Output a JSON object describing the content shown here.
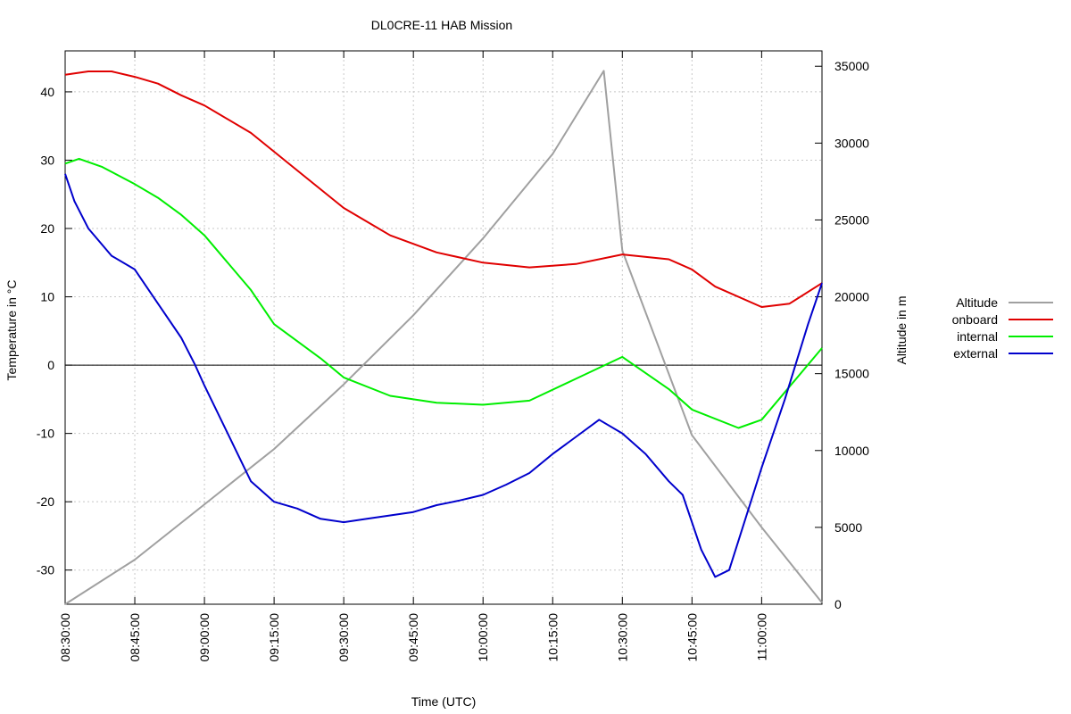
{
  "chart_data": {
    "type": "line",
    "title": "DL0CRE-11 HAB Mission",
    "xlabel": "Time (UTC)",
    "ylabel": "Temperature in °C",
    "y2label": "Altitude in m",
    "xlim": [
      "08:30:00",
      "11:13:00"
    ],
    "ylim": [
      -35,
      46
    ],
    "y2lim": [
      0,
      36000
    ],
    "x_ticks": [
      "08:30:00",
      "08:45:00",
      "09:00:00",
      "09:15:00",
      "09:30:00",
      "09:45:00",
      "10:00:00",
      "10:15:00",
      "10:30:00",
      "10:45:00",
      "11:00:00"
    ],
    "y_ticks": [
      -30,
      -20,
      -10,
      0,
      10,
      20,
      30,
      40
    ],
    "y2_ticks": [
      0,
      5000,
      10000,
      15000,
      20000,
      25000,
      30000,
      35000
    ],
    "grid": true,
    "zero_line": true,
    "legend": "right",
    "series": [
      {
        "name": "Altitude",
        "axis": "y2",
        "color": "#a0a0a0",
        "x": [
          "08:30:00",
          "08:45:00",
          "09:00:00",
          "09:15:00",
          "09:30:00",
          "09:45:00",
          "10:00:00",
          "10:15:00",
          "10:26:00",
          "10:30:00",
          "10:45:00",
          "11:00:00",
          "11:13:00"
        ],
        "values": [
          0,
          2900,
          6500,
          10100,
          14300,
          18800,
          23800,
          29300,
          34700,
          23000,
          11000,
          5000,
          100
        ]
      },
      {
        "name": "onboard",
        "axis": "y",
        "color": "#e00000",
        "x": [
          "08:30:00",
          "08:35:00",
          "08:40:00",
          "08:45:00",
          "08:50:00",
          "08:55:00",
          "09:00:00",
          "09:10:00",
          "09:20:00",
          "09:30:00",
          "09:40:00",
          "09:50:00",
          "10:00:00",
          "10:10:00",
          "10:20:00",
          "10:30:00",
          "10:40:00",
          "10:45:00",
          "10:50:00",
          "11:00:00",
          "11:06:00",
          "11:13:00"
        ],
        "values": [
          42.5,
          43,
          43,
          42.2,
          41.2,
          39.5,
          38,
          34,
          28.5,
          23,
          19,
          16.5,
          15,
          14.3,
          14.8,
          16.2,
          15.5,
          14,
          11.5,
          8.5,
          9,
          12
        ]
      },
      {
        "name": "internal",
        "axis": "y",
        "color": "#00ee00",
        "x": [
          "08:30:00",
          "08:33:00",
          "08:38:00",
          "08:45:00",
          "08:50:00",
          "08:55:00",
          "09:00:00",
          "09:10:00",
          "09:15:00",
          "09:25:00",
          "09:30:00",
          "09:40:00",
          "09:50:00",
          "10:00:00",
          "10:10:00",
          "10:20:00",
          "10:30:00",
          "10:40:00",
          "10:45:00",
          "10:55:00",
          "11:00:00",
          "11:13:00"
        ],
        "values": [
          29.5,
          30.2,
          29,
          26.5,
          24.5,
          22,
          19,
          11,
          6,
          1,
          -1.8,
          -4.5,
          -5.5,
          -5.8,
          -5.2,
          -2,
          1.2,
          -3.5,
          -6.5,
          -9.2,
          -8,
          2.5
        ]
      },
      {
        "name": "external",
        "axis": "y",
        "color": "#0000cc",
        "x": [
          "08:30:00",
          "08:32:00",
          "08:35:00",
          "08:40:00",
          "08:45:00",
          "08:50:00",
          "08:55:00",
          "08:58:00",
          "09:00:00",
          "09:05:00",
          "09:10:00",
          "09:15:00",
          "09:20:00",
          "09:25:00",
          "09:30:00",
          "09:35:00",
          "09:40:00",
          "09:45:00",
          "09:50:00",
          "09:55:00",
          "10:00:00",
          "10:05:00",
          "10:10:00",
          "10:15:00",
          "10:20:00",
          "10:25:00",
          "10:30:00",
          "10:35:00",
          "10:40:00",
          "10:43:00",
          "10:47:00",
          "10:50:00",
          "10:53:00",
          "11:00:00",
          "11:05:00",
          "11:10:00",
          "11:13:00"
        ],
        "values": [
          28,
          24,
          20,
          16,
          14,
          9,
          4,
          0,
          -3,
          -10,
          -17,
          -20,
          -21,
          -22.5,
          -23,
          -22.5,
          -22,
          -21.5,
          -20.5,
          -19.8,
          -19,
          -17.5,
          -15.8,
          -13,
          -10.5,
          -8,
          -10,
          -13,
          -17,
          -19,
          -27,
          -31,
          -30,
          -15,
          -5,
          6,
          12
        ]
      }
    ]
  }
}
